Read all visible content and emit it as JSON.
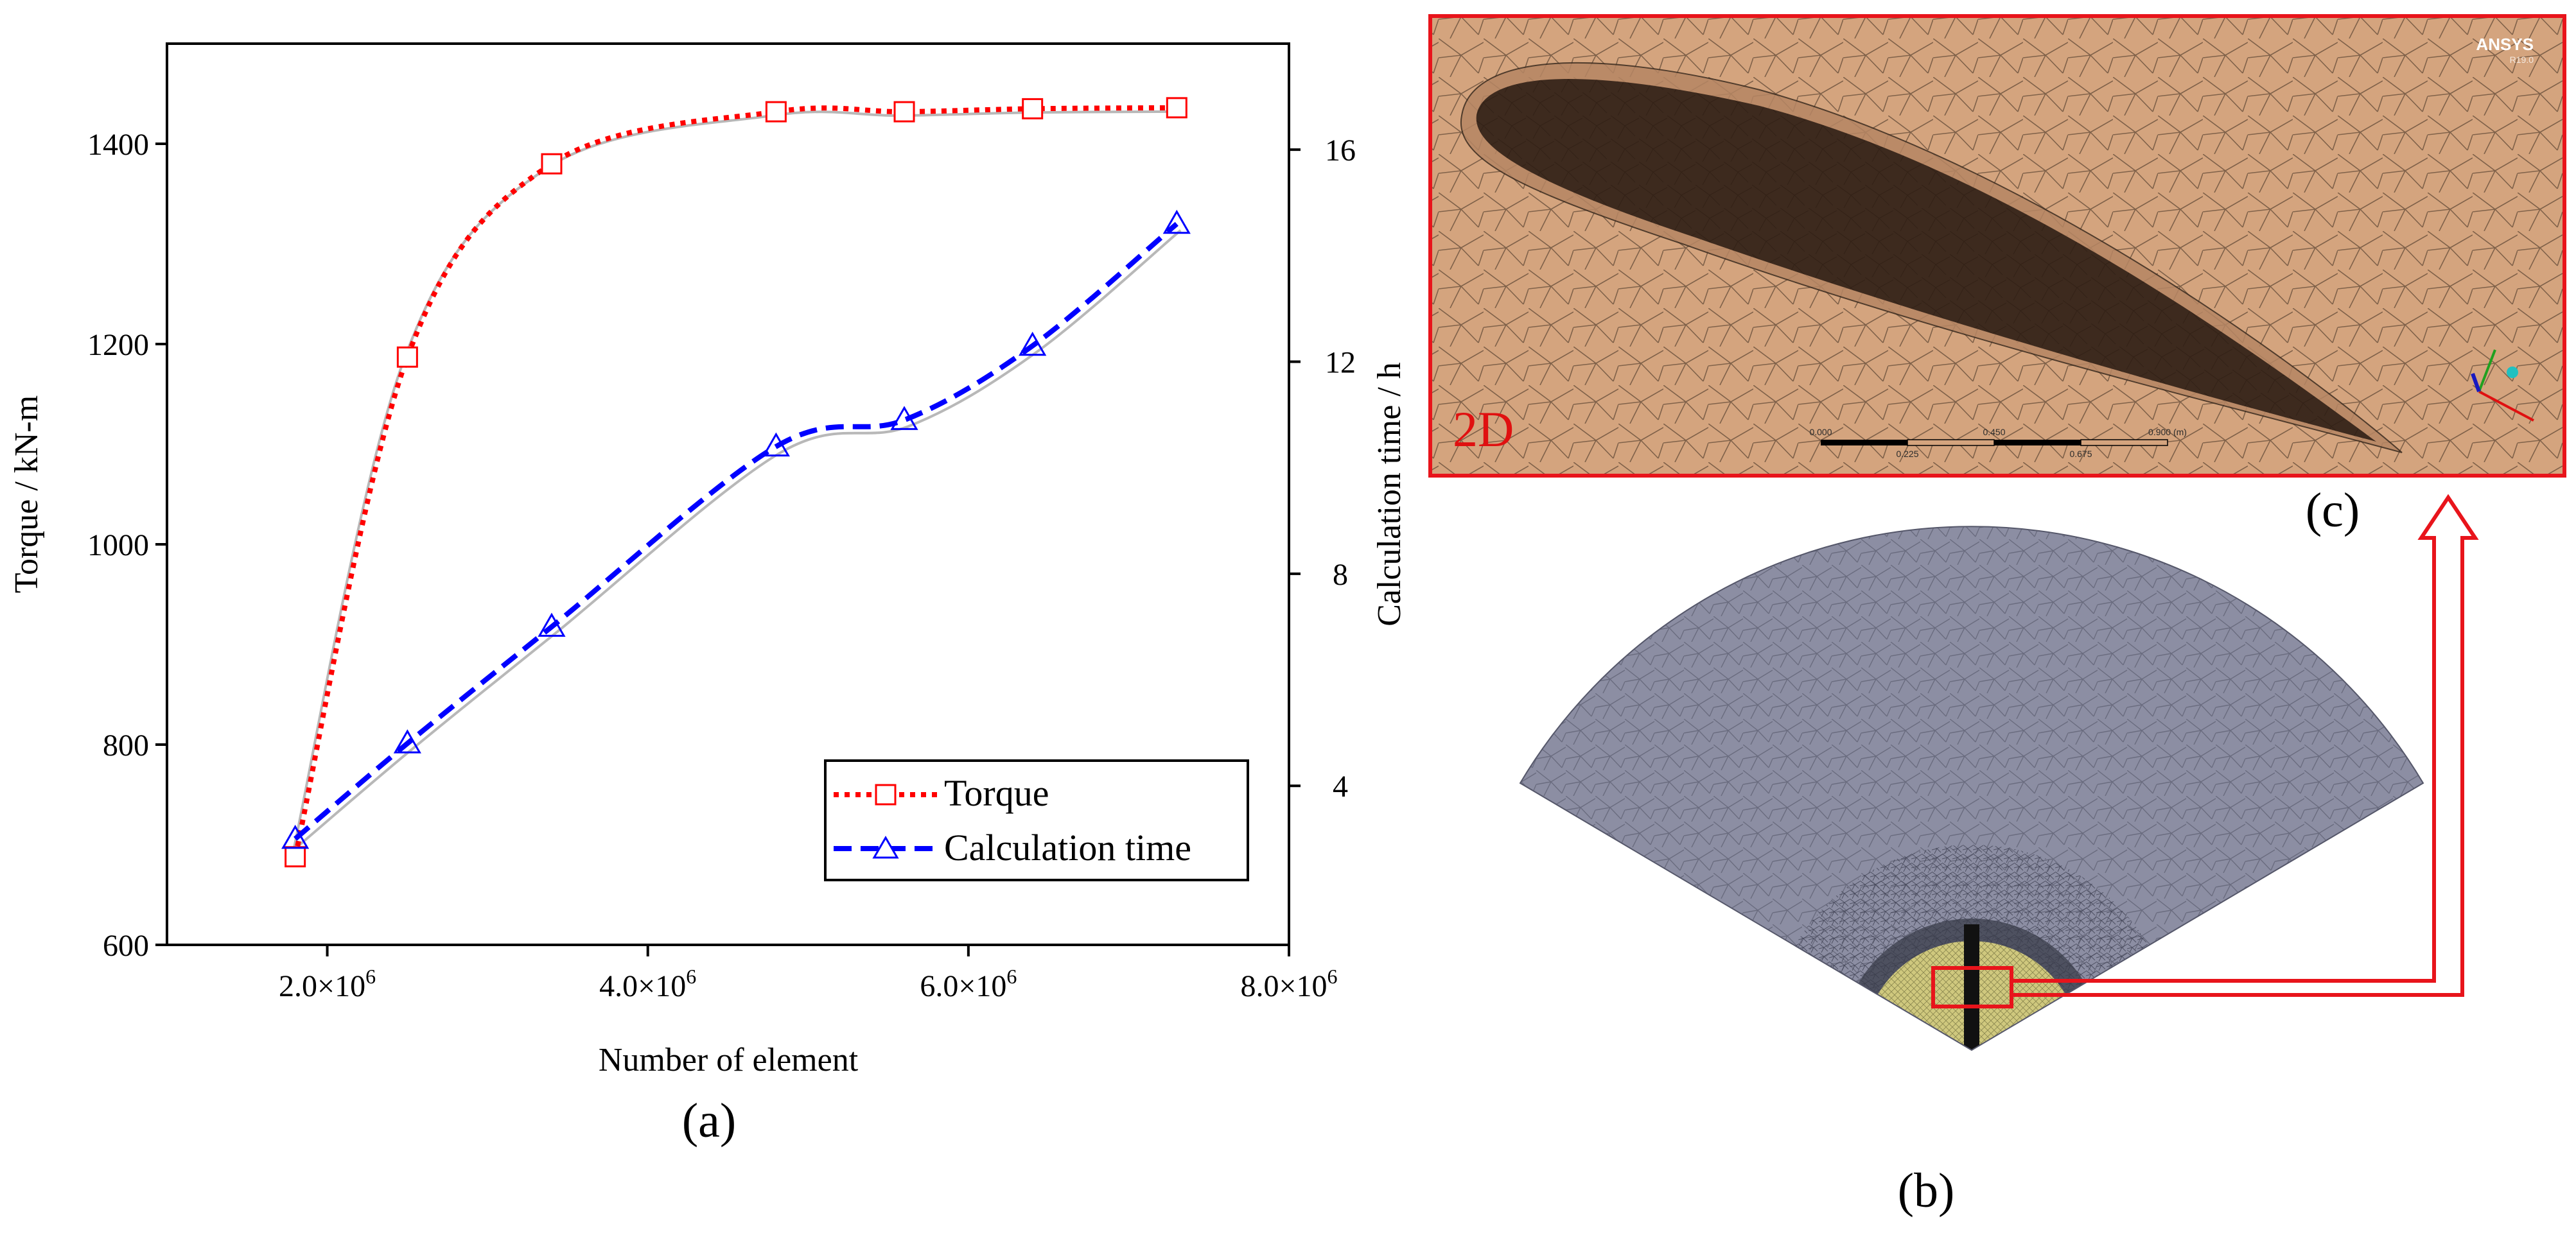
{
  "chart_data": {
    "type": "line",
    "panel_label": "(a)",
    "title": "",
    "xlabel": "Number of element",
    "ylabel_left": "Torque / kN-m",
    "ylabel_right": "Calculation time / h",
    "xlim": [
      1000000,
      8000000
    ],
    "ylim_left": [
      600,
      1500
    ],
    "ylim_right": [
      1.0,
      18.0
    ],
    "x_ticks": [
      2000000,
      4000000,
      6000000,
      8000000
    ],
    "x_tick_labels": [
      {
        "mantissa": "2.0×10",
        "exp": "6"
      },
      {
        "mantissa": "4.0×10",
        "exp": "6"
      },
      {
        "mantissa": "6.0×10",
        "exp": "6"
      },
      {
        "mantissa": "8.0×10",
        "exp": "6"
      }
    ],
    "y_left_ticks": [
      600,
      800,
      1000,
      1200,
      1400
    ],
    "y_left_tick_labels": [
      "600",
      "800",
      "1000",
      "1200",
      "1400"
    ],
    "y_right_ticks": [
      4,
      8,
      12,
      16
    ],
    "y_right_tick_labels": [
      "4",
      "8",
      "12",
      "16"
    ],
    "grid": false,
    "legend_position": "bottom-right",
    "series": [
      {
        "name": "Torque",
        "axis": "left",
        "color": "#ff0000",
        "marker": "square",
        "line_style": "dotted",
        "x": [
          1800000,
          2500000,
          3400000,
          4800000,
          5600000,
          6400000,
          7300000
        ],
        "values": [
          688,
          1187,
          1380,
          1432,
          1432,
          1435,
          1436
        ]
      },
      {
        "name": "Calculation time",
        "axis": "right",
        "color": "#0000ff",
        "marker": "triangle",
        "line_style": "dashed",
        "x": [
          1800000,
          2500000,
          3400000,
          4800000,
          5600000,
          6400000,
          7300000
        ],
        "values": [
          3.0,
          4.8,
          7.0,
          10.4,
          10.9,
          12.3,
          14.6
        ]
      }
    ],
    "fit_curve_color": "#b8b8b8"
  },
  "panel_b": {
    "label": "(b)"
  },
  "panel_c": {
    "label": "(c)",
    "mesh_tag": "2D",
    "logo": "ANSYS",
    "logo_version": "R19.0",
    "scale_labels": [
      "0.000",
      "0.225",
      "0.450",
      "0.675",
      "0.900 (m)"
    ]
  },
  "colors": {
    "torque": "#ff0000",
    "calc_time": "#0000ff",
    "highlight_box": "#e8141b",
    "fluid_domain": "#d4a47e",
    "blade": "#3d2a1e",
    "fan_mesh": "#8c8ea3"
  }
}
